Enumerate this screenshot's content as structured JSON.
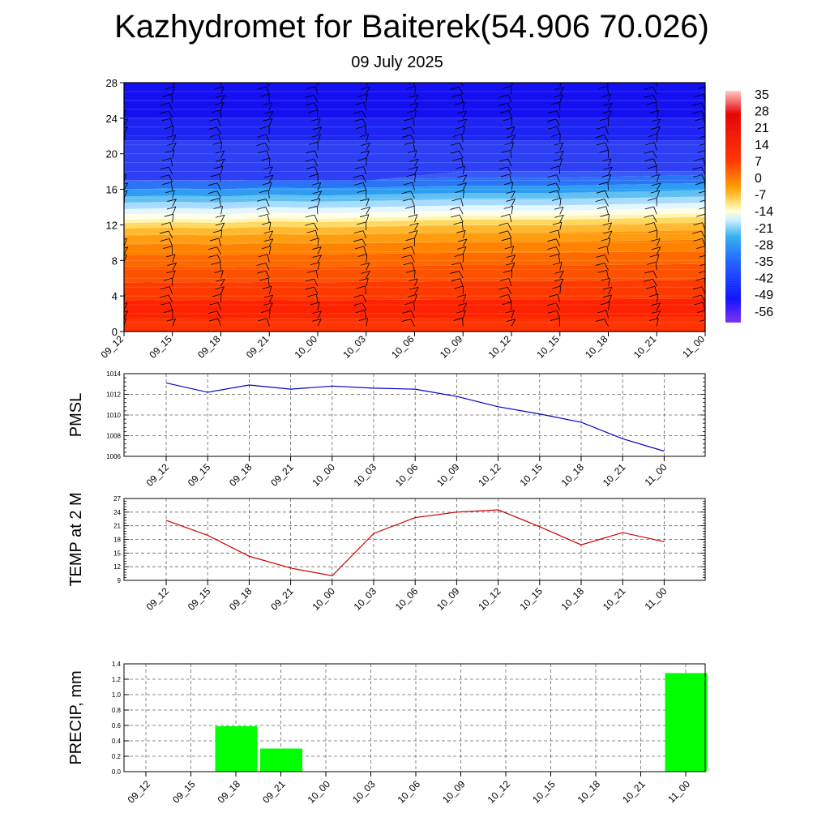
{
  "header": {
    "title": "Kazhydromet for Baiterek(54.906 70.026)",
    "date": "09 July 2025"
  },
  "time_labels": [
    "09_12",
    "09_15",
    "09_18",
    "09_21",
    "10_00",
    "10_03",
    "10_06",
    "10_09",
    "10_12",
    "10_15",
    "10_18",
    "10_21",
    "11_00"
  ],
  "chart_data": [
    {
      "type": "heatmap",
      "title": "",
      "ylim": [
        0,
        28
      ],
      "yticks": [
        0,
        4,
        8,
        12,
        16,
        20,
        24,
        28
      ],
      "colorbar_labels": [
        "35",
        "28",
        "21",
        "14",
        "7",
        "0",
        "-7",
        "-14",
        "-21",
        "-28",
        "-35",
        "-42",
        "-49",
        "-56"
      ],
      "colorbar_range": [
        -60,
        38
      ],
      "freezing_level": [
        12.6,
        12.7,
        12.6,
        12.8,
        12.7,
        12.8,
        12.9,
        13.0,
        13.0,
        13.0,
        13.1,
        13.2,
        13.3
      ],
      "tropopause_level": [
        17,
        17,
        17,
        17,
        17,
        17,
        17.5,
        18,
        18,
        18,
        18,
        18,
        18
      ],
      "note_barbs": "wind barbs plotted along each time column"
    },
    {
      "type": "line",
      "ylabel": "PMSL",
      "ylim": [
        1006,
        1014
      ],
      "yticks": [
        1006,
        1008,
        1010,
        1012,
        1014
      ],
      "series": [
        {
          "values": [
            1013.1,
            1012.2,
            1012.9,
            1012.5,
            1012.8,
            1012.6,
            1012.5,
            1011.8,
            1010.8,
            1010.1,
            1009.3,
            1007.7,
            1006.5
          ],
          "color": "#0000cc"
        }
      ],
      "grid": true
    },
    {
      "type": "line",
      "ylabel": "TEMP at 2 M",
      "ylim": [
        9,
        27
      ],
      "yticks": [
        9,
        12,
        15,
        18,
        21,
        24,
        27
      ],
      "series": [
        {
          "values": [
            22.2,
            18.9,
            14.3,
            11.7,
            10.0,
            19.3,
            22.8,
            24.0,
            24.5,
            20.8,
            16.8,
            19.5,
            17.5
          ],
          "color": "#cc0000"
        }
      ],
      "grid": true
    },
    {
      "type": "bar",
      "ylabel": "PRECIP, mm",
      "ylim": [
        0,
        1.4
      ],
      "yticks": [
        "0.0",
        "0.2",
        "0.4",
        "0.6",
        "0.8",
        "1.0",
        "1.2",
        "1.4"
      ],
      "values": [
        0,
        0,
        0.59,
        0.3,
        0,
        0,
        0,
        0,
        0,
        0,
        0,
        0,
        1.28
      ],
      "color": "#00ff00",
      "grid": true
    }
  ]
}
